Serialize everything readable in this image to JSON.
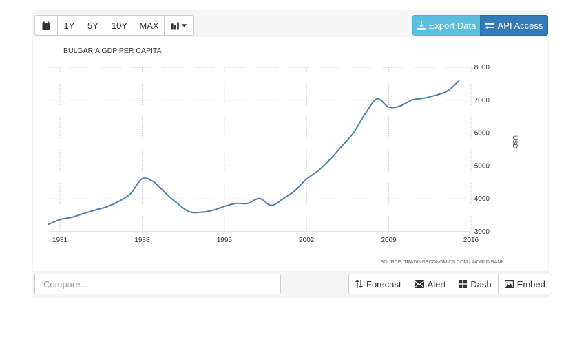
{
  "toolbar": {
    "buttons": [
      "1Y",
      "5Y",
      "10Y",
      "MAX"
    ],
    "calendar_icon": "calendar-icon",
    "chart_type_icon": "bar-chart-icon"
  },
  "export_label": "Export Data",
  "api_label": "API Access",
  "compare_placeholder": "Compare...",
  "actions": {
    "forecast": "Forecast",
    "alert": "Alert",
    "dash": "Dash",
    "embed": "Embed"
  },
  "colors": {
    "line": "#4f7fab",
    "export_bg": "#5bc0de",
    "api_bg": "#337ab7"
  },
  "chart_data": {
    "type": "line",
    "title": "BULGARIA GDP PER CAPITA",
    "ylabel": "USD",
    "xlabel": "",
    "source": "SOURCE: TRADINGECONOMICS.COM | WORLD BANK",
    "x_ticks": [
      "1981",
      "1988",
      "1995",
      "2002",
      "2009",
      "2016"
    ],
    "y_ticks": [
      "3000",
      "4000",
      "5000",
      "6000",
      "7000",
      "8000"
    ],
    "xlim": [
      1980,
      2016
    ],
    "ylim": [
      3000,
      8000
    ],
    "grid": true,
    "y_axis_position": "right",
    "series": [
      {
        "x": [
          1980,
          1981,
          1982,
          1983,
          1984,
          1985,
          1986,
          1987,
          1988,
          1989,
          1990,
          1991,
          1992,
          1993,
          1994,
          1995,
          1996,
          1997,
          1998,
          1999,
          2000,
          2001,
          2002,
          2003,
          2004,
          2005,
          2006,
          2007,
          2008,
          2009,
          2010,
          2011,
          2012,
          2013,
          2014,
          2015
        ],
        "y": [
          3220,
          3370,
          3440,
          3550,
          3660,
          3760,
          3920,
          4150,
          4610,
          4510,
          4170,
          3860,
          3610,
          3590,
          3650,
          3770,
          3860,
          3860,
          4010,
          3800,
          4000,
          4250,
          4600,
          4860,
          5200,
          5600,
          6010,
          6590,
          7040,
          6790,
          6830,
          7010,
          7060,
          7150,
          7280,
          7600
        ]
      }
    ]
  }
}
